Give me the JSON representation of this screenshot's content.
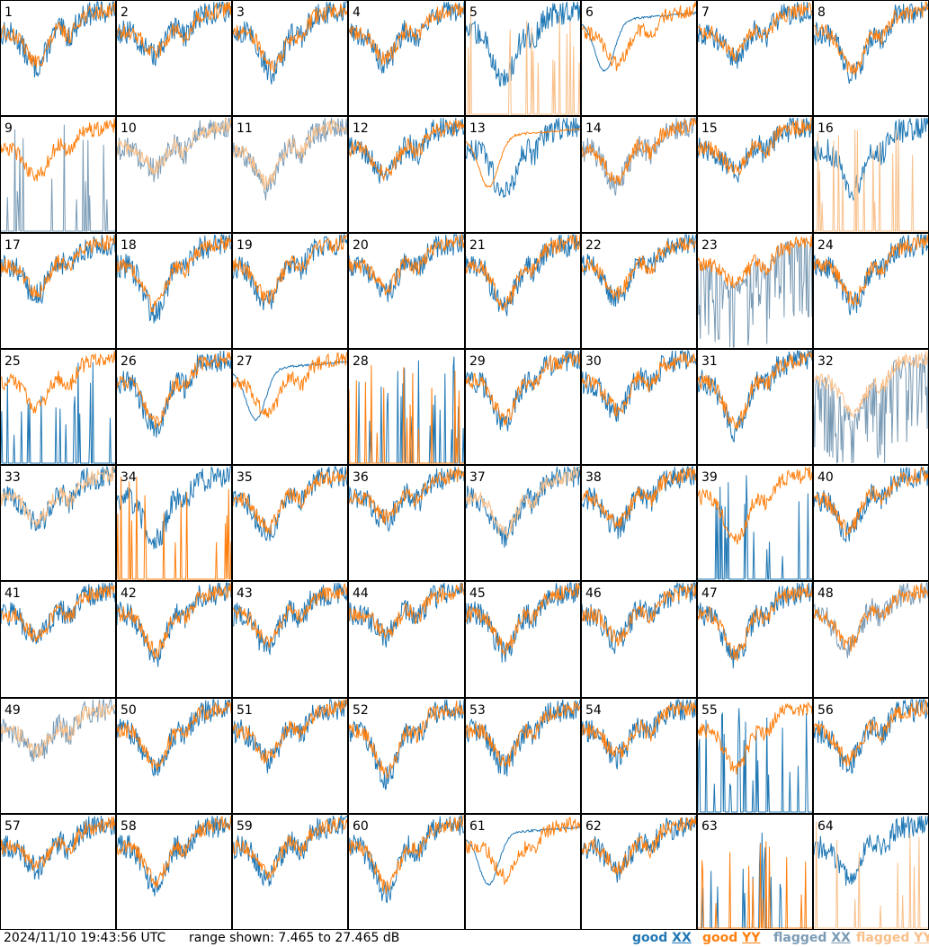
{
  "footer": {
    "timestamp": "2024/11/10 19:43:56 UTC",
    "range_text": "range shown: 7.465 to 27.465 dB"
  },
  "legend": [
    {
      "status": "good",
      "pol": "XX",
      "color": "#1f77b4"
    },
    {
      "status": "good",
      "pol": "YY",
      "color": "#ff7f0e"
    },
    {
      "status": "flagged",
      "pol": "XX",
      "color": "#7a9bb5"
    },
    {
      "status": "flagged",
      "pol": "YY",
      "color": "#f9c08a"
    }
  ],
  "chart_data": {
    "type": "line",
    "layout": "8x8 small multiples",
    "ylim": [
      7.465,
      27.465
    ],
    "y_unit": "dB",
    "panels": [
      {
        "id": "1",
        "xx": "good",
        "yy": "good",
        "shape": "std"
      },
      {
        "id": "2",
        "xx": "good",
        "yy": "good",
        "shape": "std"
      },
      {
        "id": "3",
        "xx": "good",
        "yy": "good",
        "shape": "std"
      },
      {
        "id": "4",
        "xx": "good",
        "yy": "good",
        "shape": "std"
      },
      {
        "id": "5",
        "xx": "good",
        "yy": "flagged",
        "shape": "xx_only"
      },
      {
        "id": "6",
        "xx": "good",
        "yy": "good",
        "shape": "smooth_xx"
      },
      {
        "id": "7",
        "xx": "good",
        "yy": "good",
        "shape": "std"
      },
      {
        "id": "8",
        "xx": "good",
        "yy": "good",
        "shape": "std"
      },
      {
        "id": "9",
        "xx": "flagged",
        "yy": "good",
        "shape": "yy_only"
      },
      {
        "id": "10",
        "xx": "flagged",
        "yy": "flagged",
        "shape": "std"
      },
      {
        "id": "11",
        "xx": "flagged",
        "yy": "flagged",
        "shape": "std"
      },
      {
        "id": "12",
        "xx": "good",
        "yy": "good",
        "shape": "std"
      },
      {
        "id": "13",
        "xx": "good",
        "yy": "good",
        "shape": "smooth_yy"
      },
      {
        "id": "14",
        "xx": "flagged",
        "yy": "good",
        "shape": "std"
      },
      {
        "id": "15",
        "xx": "good",
        "yy": "good",
        "shape": "std"
      },
      {
        "id": "16",
        "xx": "good",
        "yy": "flagged",
        "shape": "xx_only"
      },
      {
        "id": "17",
        "xx": "good",
        "yy": "good",
        "shape": "std"
      },
      {
        "id": "18",
        "xx": "good",
        "yy": "good",
        "shape": "std"
      },
      {
        "id": "19",
        "xx": "good",
        "yy": "good",
        "shape": "std"
      },
      {
        "id": "20",
        "xx": "good",
        "yy": "good",
        "shape": "std"
      },
      {
        "id": "21",
        "xx": "good",
        "yy": "good",
        "shape": "std"
      },
      {
        "id": "22",
        "xx": "good",
        "yy": "good",
        "shape": "std"
      },
      {
        "id": "23",
        "xx": "flagged",
        "yy": "good",
        "shape": "noisy_xx"
      },
      {
        "id": "24",
        "xx": "good",
        "yy": "good",
        "shape": "std"
      },
      {
        "id": "25",
        "xx": "good",
        "yy": "good",
        "shape": "yy_only"
      },
      {
        "id": "26",
        "xx": "good",
        "yy": "good",
        "shape": "std"
      },
      {
        "id": "27",
        "xx": "good",
        "yy": "good",
        "shape": "smooth_xx"
      },
      {
        "id": "28",
        "xx": "good",
        "yy": "good",
        "shape": "both_spikes"
      },
      {
        "id": "29",
        "xx": "good",
        "yy": "good",
        "shape": "std"
      },
      {
        "id": "30",
        "xx": "good",
        "yy": "good",
        "shape": "std"
      },
      {
        "id": "31",
        "xx": "good",
        "yy": "good",
        "shape": "std"
      },
      {
        "id": "32",
        "xx": "flagged",
        "yy": "flagged",
        "shape": "noisy_xx"
      },
      {
        "id": "33",
        "xx": "good",
        "yy": "flagged",
        "shape": "std"
      },
      {
        "id": "34",
        "xx": "good",
        "yy": "good",
        "shape": "yy_spiky"
      },
      {
        "id": "35",
        "xx": "good",
        "yy": "good",
        "shape": "std"
      },
      {
        "id": "36",
        "xx": "good",
        "yy": "good",
        "shape": "std"
      },
      {
        "id": "37",
        "xx": "good",
        "yy": "flagged",
        "shape": "std"
      },
      {
        "id": "38",
        "xx": "good",
        "yy": "good",
        "shape": "std"
      },
      {
        "id": "39",
        "xx": "good",
        "yy": "good",
        "shape": "yy_only"
      },
      {
        "id": "40",
        "xx": "good",
        "yy": "good",
        "shape": "std"
      },
      {
        "id": "41",
        "xx": "good",
        "yy": "good",
        "shape": "std"
      },
      {
        "id": "42",
        "xx": "good",
        "yy": "good",
        "shape": "std"
      },
      {
        "id": "43",
        "xx": "good",
        "yy": "good",
        "shape": "std"
      },
      {
        "id": "44",
        "xx": "good",
        "yy": "good",
        "shape": "std"
      },
      {
        "id": "45",
        "xx": "good",
        "yy": "good",
        "shape": "std"
      },
      {
        "id": "46",
        "xx": "good",
        "yy": "good",
        "shape": "std"
      },
      {
        "id": "47",
        "xx": "good",
        "yy": "good",
        "shape": "std"
      },
      {
        "id": "48",
        "xx": "flagged",
        "yy": "good",
        "shape": "std"
      },
      {
        "id": "49",
        "xx": "flagged",
        "yy": "flagged",
        "shape": "std"
      },
      {
        "id": "50",
        "xx": "good",
        "yy": "good",
        "shape": "std"
      },
      {
        "id": "51",
        "xx": "good",
        "yy": "good",
        "shape": "std"
      },
      {
        "id": "52",
        "xx": "good",
        "yy": "good",
        "shape": "std"
      },
      {
        "id": "53",
        "xx": "good",
        "yy": "good",
        "shape": "std"
      },
      {
        "id": "54",
        "xx": "good",
        "yy": "good",
        "shape": "std"
      },
      {
        "id": "55",
        "xx": "good",
        "yy": "good",
        "shape": "yy_only"
      },
      {
        "id": "56",
        "xx": "good",
        "yy": "good",
        "shape": "std"
      },
      {
        "id": "57",
        "xx": "good",
        "yy": "good",
        "shape": "std"
      },
      {
        "id": "58",
        "xx": "good",
        "yy": "good",
        "shape": "std"
      },
      {
        "id": "59",
        "xx": "good",
        "yy": "good",
        "shape": "std"
      },
      {
        "id": "60",
        "xx": "good",
        "yy": "good",
        "shape": "std"
      },
      {
        "id": "61",
        "xx": "good",
        "yy": "good",
        "shape": "smooth_xx"
      },
      {
        "id": "62",
        "xx": "good",
        "yy": "good",
        "shape": "std"
      },
      {
        "id": "63",
        "xx": "good",
        "yy": "good",
        "shape": "both_spikes"
      },
      {
        "id": "64",
        "xx": "good",
        "yy": "flagged",
        "shape": "xx_only"
      }
    ]
  }
}
